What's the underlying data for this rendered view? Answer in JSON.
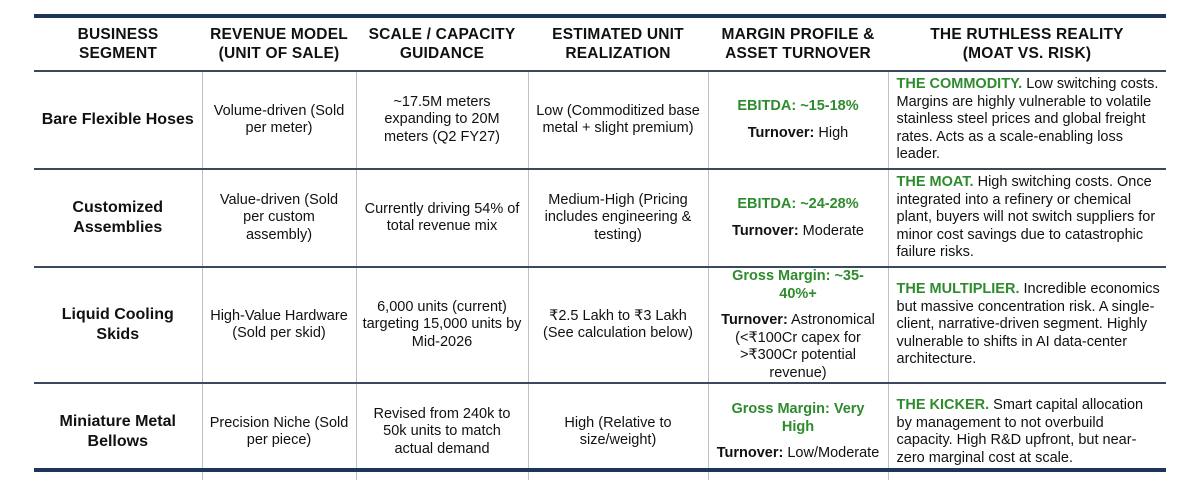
{
  "headers": [
    {
      "l1": "BUSINESS SEGMENT",
      "l2": ""
    },
    {
      "l1": "REVENUE MODEL",
      "l2": "(UNIT OF SALE)"
    },
    {
      "l1": "SCALE / CAPACITY",
      "l2": "GUIDANCE"
    },
    {
      "l1": "ESTIMATED UNIT",
      "l2": "REALIZATION"
    },
    {
      "l1": "MARGIN PROFILE &",
      "l2": "ASSET TURNOVER"
    },
    {
      "l1": "THE RUTHLESS REALITY",
      "l2": "(MOAT VS. RISK)"
    }
  ],
  "rows": [
    {
      "segment": "Bare Flexible Hoses",
      "revenue_model": "Volume-driven (Sold per meter)",
      "scale": "~17.5M meters expanding to 20M meters (Q2 FY27)",
      "realization": "Low (Commoditized base metal + slight premium)",
      "margin": "EBITDA: ~15-18%",
      "turnover_label": "Turnover:",
      "turnover_value": " High",
      "reality_tag": "THE COMMODITY.",
      "reality_text": " Low switching costs. Margins are highly vulnerable to volatile stainless steel prices and global freight rates. Acts as a scale-enabling loss leader."
    },
    {
      "segment": "Customized Assemblies",
      "revenue_model": "Value-driven (Sold per custom assembly)",
      "scale": "Currently driving 54% of total revenue mix",
      "realization": "Medium-High (Pricing includes engineering & testing)",
      "margin": "EBITDA: ~24-28%",
      "turnover_label": "Turnover:",
      "turnover_value": " Moderate",
      "reality_tag": "THE MOAT.",
      "reality_text": " High switching costs. Once integrated into a refinery or chemical plant, buyers will not switch suppliers for minor cost savings due to catastrophic failure risks."
    },
    {
      "segment": "Liquid Cooling Skids",
      "revenue_model": "High-Value Hardware (Sold per skid)",
      "scale": "6,000 units (current) targeting 15,000 units by Mid-2026",
      "realization": "₹2.5 Lakh to ₹3 Lakh (See calculation below)",
      "margin": "Gross Margin: ~35-40%+",
      "turnover_label": "Turnover:",
      "turnover_value": " Astronomical (<₹100Cr capex for >₹300Cr potential revenue)",
      "reality_tag": "THE MULTIPLIER.",
      "reality_text": " Incredible economics but massive concentration risk. A single-client, narrative-driven segment. Highly vulnerable to shifts in AI data-center architecture."
    },
    {
      "segment": "Miniature Metal Bellows",
      "revenue_model": "Precision Niche (Sold per piece)",
      "scale": "Revised from 240k to 50k units to match actual demand",
      "realization": "High (Relative to size/weight)",
      "margin": "Gross Margin: Very High",
      "turnover_label": "Turnover:",
      "turnover_value": " Low/Moderate",
      "reality_tag": "THE KICKER.",
      "reality_text": " Smart capital allocation by management to not overbuild capacity. High R&D upfront, but near-zero marginal cost at scale."
    }
  ]
}
